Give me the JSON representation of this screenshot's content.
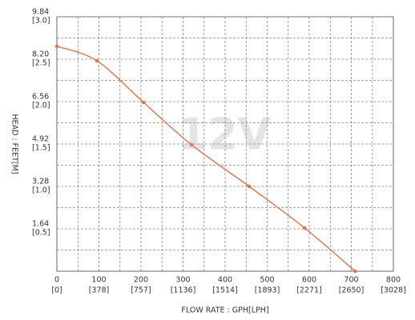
{
  "chart_data": {
    "type": "line",
    "watermark": "12V",
    "xlabel": "FLOW RATE : GPH[LPH]",
    "ylabel": "HEAD : FEET[M]",
    "x": [
      0,
      95,
      206,
      320,
      457,
      589,
      709
    ],
    "series": [
      {
        "name": "12V",
        "color": "#e8704a",
        "values": [
          8.7,
          8.14,
          6.53,
          4.89,
          3.28,
          1.67,
          0
        ]
      }
    ],
    "xlim": [
      0,
      800
    ],
    "xticks": [
      0,
      100,
      200,
      300,
      400,
      500,
      600,
      700,
      800
    ],
    "xtick_secondary_labels": [
      "[0]",
      "[378]",
      "[757]",
      "[1136]",
      "[1514]",
      "[1893]",
      "[2271]",
      "[2650]",
      "[3028]"
    ],
    "ylim": [
      0,
      9.84
    ],
    "yticks": [
      1.64,
      3.28,
      4.92,
      6.56,
      {
        "value": 8.2,
        "label": "8.20"
      },
      9.84
    ],
    "ytick_secondary_labels": [
      "[0.5]",
      "[1.0]",
      "[1.5]",
      "[2.0]",
      "[2.5]",
      "[3.0]"
    ],
    "grid": true
  }
}
